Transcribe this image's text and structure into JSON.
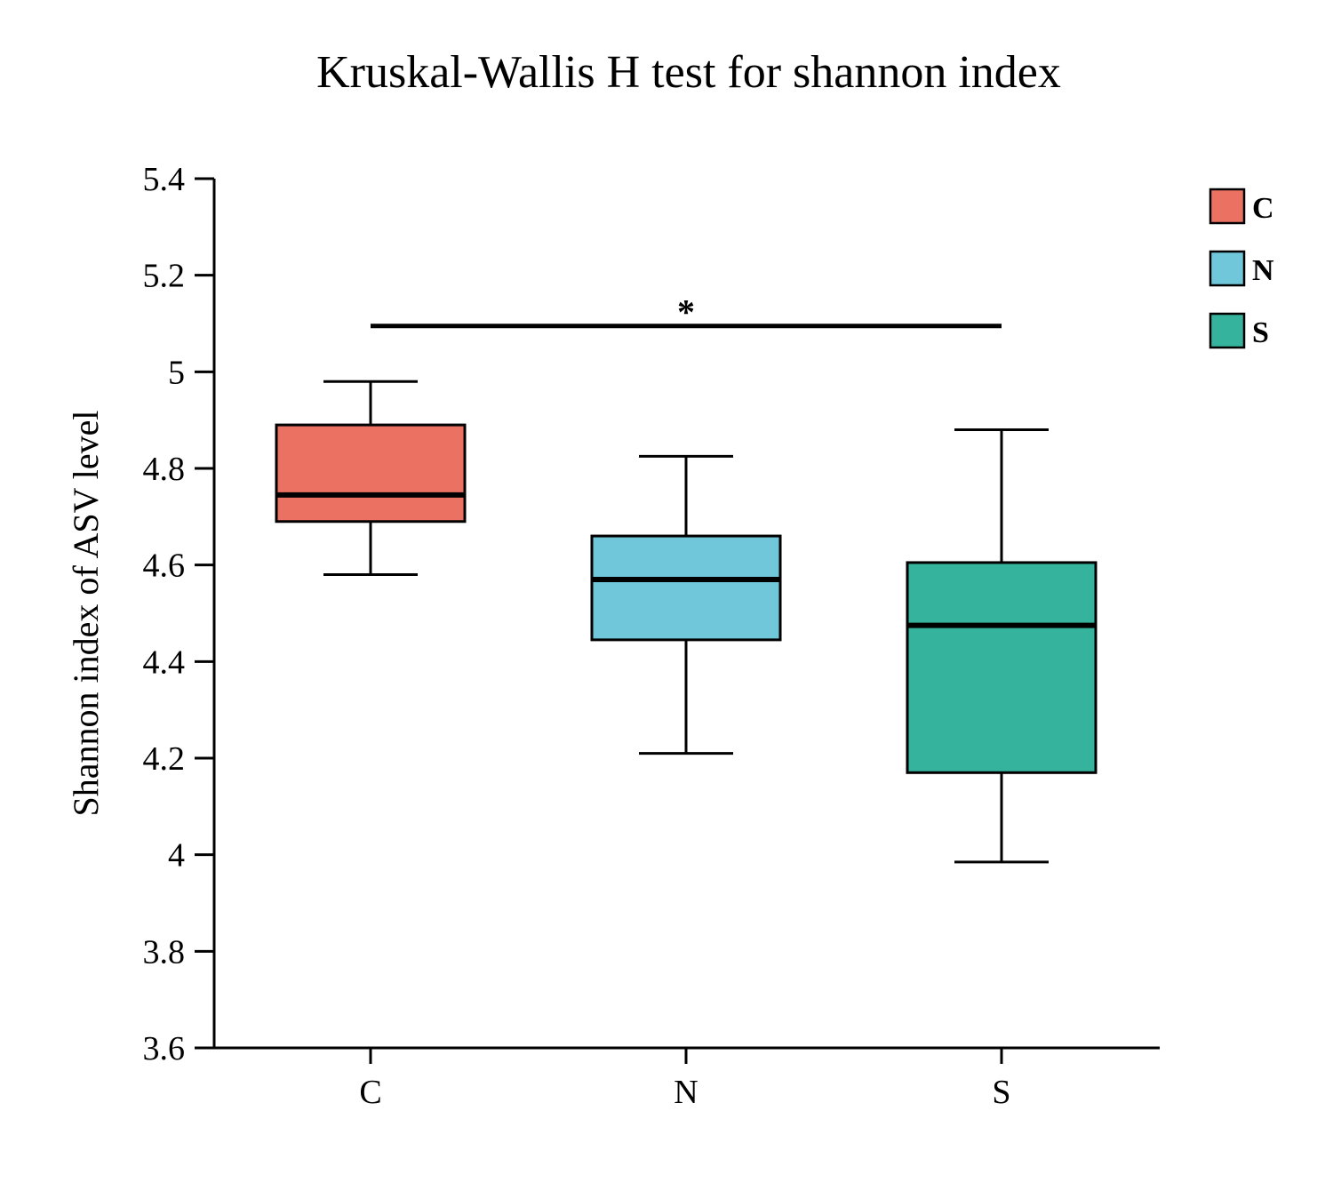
{
  "chart_data": {
    "type": "box",
    "title": "Kruskal-Wallis H test for shannon index",
    "xlabel": "",
    "ylabel": "Shannon index of ASV level",
    "ylim": [
      3.6,
      5.4
    ],
    "yticks": [
      "3.6",
      "3.8",
      "4",
      "4.2",
      "4.4",
      "4.6",
      "4.8",
      "5",
      "5.2",
      "5.4"
    ],
    "ytick_values": [
      3.6,
      3.8,
      4.0,
      4.2,
      4.4,
      4.6,
      4.8,
      5.0,
      5.2,
      5.4
    ],
    "categories": [
      "C",
      "N",
      "S"
    ],
    "series": [
      {
        "name": "C",
        "color": "#EB7263",
        "min": 4.58,
        "q1": 4.69,
        "median": 4.745,
        "q3": 4.89,
        "max": 4.98
      },
      {
        "name": "N",
        "color": "#70C7DA",
        "min": 4.21,
        "q1": 4.445,
        "median": 4.57,
        "q3": 4.66,
        "max": 4.825
      },
      {
        "name": "S",
        "color": "#35B39C",
        "min": 3.985,
        "q1": 4.17,
        "median": 4.475,
        "q3": 4.605,
        "max": 4.88
      }
    ],
    "significance": {
      "from": "C",
      "to": "S",
      "y": 5.095,
      "label": "*"
    },
    "legend": {
      "position": "top-right",
      "entries": [
        "C",
        "N",
        "S"
      ]
    },
    "grid": false
  }
}
